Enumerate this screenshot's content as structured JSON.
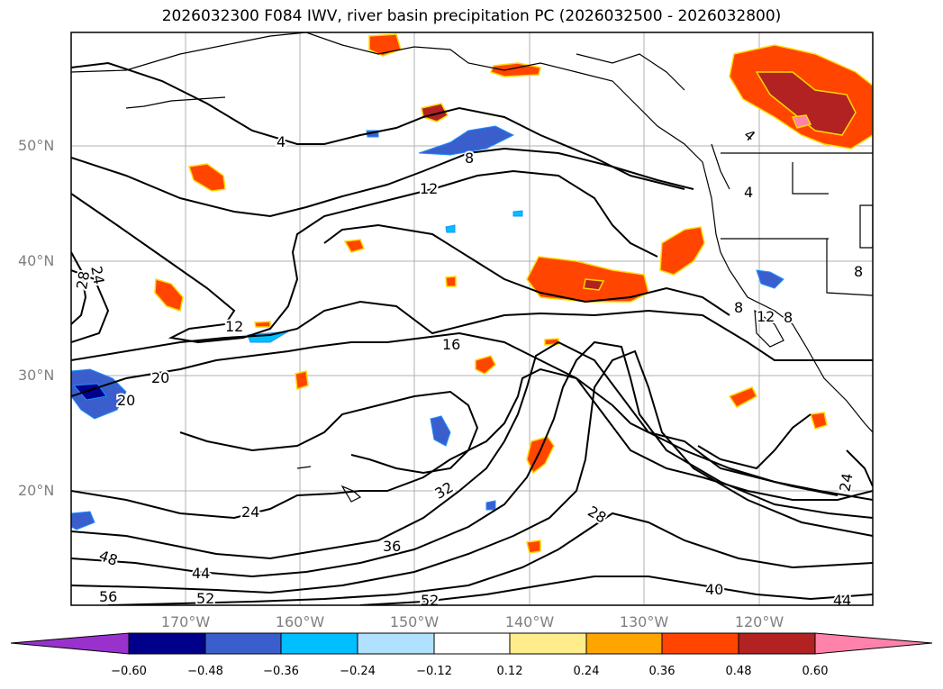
{
  "title": "2026032300 F084 IWV, river basin precipitation PC (2026032500 - 2026032800)",
  "lat_labels": [
    "50°N",
    "40°N",
    "30°N",
    "20°N"
  ],
  "lon_labels": [
    "170°W",
    "160°W",
    "150°W",
    "140°W",
    "130°W",
    "120°W"
  ],
  "contour_labels": [
    "4",
    "8",
    "12",
    "12",
    "16",
    "20",
    "20",
    "24",
    "24",
    "28",
    "28",
    "32",
    "36",
    "40",
    "44",
    "48",
    "52",
    "52",
    "56",
    "4",
    "4",
    "8",
    "8",
    "12",
    "8",
    "24",
    "44"
  ],
  "colorbar": {
    "ticks": [
      "−0.60",
      "−0.48",
      "−0.36",
      "−0.24",
      "−0.12",
      "0.12",
      "0.24",
      "0.36",
      "0.48",
      "0.60"
    ],
    "colors": [
      "#9932cc",
      "#00008b",
      "#3a5fcd",
      "#00bfff",
      "#b0e2ff",
      "#ffffff",
      "#ffec8b",
      "#ffa500",
      "#ff4500",
      "#b22222",
      "#ff82ab"
    ]
  }
}
